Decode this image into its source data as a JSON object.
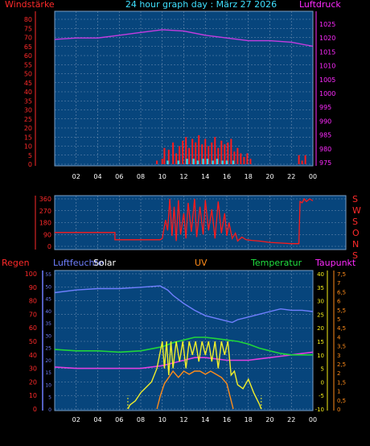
{
  "header": {
    "title": "24 hour graph day : März 27 2026",
    "left_label": "Windstärke",
    "right_label": "Luftdruck"
  },
  "panel3_labels": {
    "regen": "Regen",
    "luftfeuchte": "Luftfeuchte",
    "solar": "Solar",
    "uv": "UV",
    "temperatur": "Temperatur",
    "taupunkt": "Taupunkt"
  },
  "colors": {
    "background": "#000000",
    "plot": "#07457c",
    "grid": "#6f8fb3",
    "wind": "#ff1a1a",
    "gust": "#35d6e6",
    "pressure": "#c43ce0",
    "direction": "#ff1a1a",
    "humidity": "#6f7fff",
    "solar": "#f2ef2a",
    "uv": "#ff8c1a",
    "temperature": "#20d63a",
    "dewpoint": "#e040e0",
    "rain_axis": "#ff2a2a",
    "solar_axis": "#ffffff",
    "temp_axis": "#f7f01a",
    "uv_axis": "#ff8c1a"
  },
  "chart_data": [
    {
      "type": "line",
      "name": "wind_pressure",
      "x_ticks": [
        "02",
        "04",
        "06",
        "08",
        "10",
        "12",
        "14",
        "16",
        "18",
        "20",
        "22",
        "00"
      ],
      "y_left_ticks": [
        "0",
        "5",
        "10",
        "15",
        "20",
        "25",
        "30",
        "35",
        "40",
        "45",
        "50",
        "55",
        "60",
        "65",
        "70",
        "75",
        "80"
      ],
      "y_right_ticks": [
        "975",
        "980",
        "985",
        "990",
        "995",
        "1000",
        "1005",
        "1010",
        "1015",
        "1020",
        "1025"
      ],
      "ylim_left": [
        0,
        80
      ],
      "ylim_right": [
        975,
        1030
      ],
      "pressure": [
        [
          0,
          1019.5
        ],
        [
          2,
          1020
        ],
        [
          4,
          1020
        ],
        [
          6,
          1021
        ],
        [
          8,
          1022
        ],
        [
          10,
          1023
        ],
        [
          12,
          1022.5
        ],
        [
          14,
          1021
        ],
        [
          16,
          1020
        ],
        [
          18,
          1019
        ],
        [
          20,
          1019
        ],
        [
          22,
          1018.5
        ],
        [
          24,
          1017
        ]
      ],
      "wind_bars": [
        {
          "x": 9.5,
          "v": 2
        },
        {
          "x": 10.0,
          "v": 3
        },
        {
          "x": 10.2,
          "v": 9
        },
        {
          "x": 10.6,
          "v": 8
        },
        {
          "x": 11.0,
          "v": 12
        },
        {
          "x": 11.3,
          "v": 6
        },
        {
          "x": 11.6,
          "v": 10
        },
        {
          "x": 11.9,
          "v": 13
        },
        {
          "x": 12.2,
          "v": 15
        },
        {
          "x": 12.5,
          "v": 9
        },
        {
          "x": 12.8,
          "v": 14
        },
        {
          "x": 13.1,
          "v": 12
        },
        {
          "x": 13.4,
          "v": 16
        },
        {
          "x": 13.7,
          "v": 11
        },
        {
          "x": 14.0,
          "v": 14
        },
        {
          "x": 14.3,
          "v": 10
        },
        {
          "x": 14.6,
          "v": 12
        },
        {
          "x": 14.9,
          "v": 15
        },
        {
          "x": 15.2,
          "v": 9
        },
        {
          "x": 15.5,
          "v": 13
        },
        {
          "x": 15.8,
          "v": 11
        },
        {
          "x": 16.1,
          "v": 12
        },
        {
          "x": 16.4,
          "v": 14
        },
        {
          "x": 16.7,
          "v": 7
        },
        {
          "x": 17.0,
          "v": 9
        },
        {
          "x": 17.3,
          "v": 6
        },
        {
          "x": 17.6,
          "v": 4
        },
        {
          "x": 17.9,
          "v": 6
        },
        {
          "x": 18.2,
          "v": 3
        },
        {
          "x": 22.7,
          "v": 5
        },
        {
          "x": 23.0,
          "v": 2
        },
        {
          "x": 23.3,
          "v": 5
        }
      ],
      "gust_bars": [
        {
          "x": 10.5,
          "v": 2
        },
        {
          "x": 11.5,
          "v": 2
        },
        {
          "x": 12.3,
          "v": 3
        },
        {
          "x": 12.9,
          "v": 3
        },
        {
          "x": 13.3,
          "v": 2
        },
        {
          "x": 13.8,
          "v": 3
        },
        {
          "x": 14.2,
          "v": 3
        },
        {
          "x": 14.7,
          "v": 2
        },
        {
          "x": 15.1,
          "v": 3
        },
        {
          "x": 15.6,
          "v": 2
        },
        {
          "x": 16.0,
          "v": 2
        },
        {
          "x": 16.6,
          "v": 2
        }
      ]
    },
    {
      "type": "line",
      "name": "wind_direction",
      "y_left_ticks": [
        "0",
        "90",
        "180",
        "270",
        "360"
      ],
      "y_right_ticks": [
        "S",
        "W",
        "S",
        "O",
        "N",
        "S"
      ],
      "ylim": [
        0,
        360
      ],
      "direction": [
        [
          0,
          105
        ],
        [
          5.6,
          105
        ],
        [
          5.6,
          50
        ],
        [
          9.8,
          50
        ],
        [
          10.0,
          60
        ],
        [
          10.3,
          200
        ],
        [
          10.5,
          120
        ],
        [
          10.7,
          360
        ],
        [
          10.9,
          80
        ],
        [
          11.1,
          300
        ],
        [
          11.3,
          40
        ],
        [
          11.5,
          350
        ],
        [
          11.7,
          90
        ],
        [
          12.0,
          250
        ],
        [
          12.2,
          60
        ],
        [
          12.4,
          330
        ],
        [
          12.7,
          110
        ],
        [
          13.0,
          360
        ],
        [
          13.2,
          70
        ],
        [
          13.5,
          300
        ],
        [
          13.8,
          90
        ],
        [
          14.0,
          350
        ],
        [
          14.3,
          120
        ],
        [
          14.6,
          280
        ],
        [
          14.9,
          60
        ],
        [
          15.2,
          340
        ],
        [
          15.5,
          100
        ],
        [
          15.8,
          250
        ],
        [
          16.0,
          80
        ],
        [
          16.2,
          180
        ],
        [
          16.5,
          60
        ],
        [
          16.8,
          100
        ],
        [
          17.0,
          40
        ],
        [
          17.4,
          70
        ],
        [
          17.8,
          50
        ],
        [
          18.3,
          45
        ],
        [
          19.0,
          40
        ],
        [
          20.0,
          30
        ],
        [
          21.0,
          25
        ],
        [
          22.0,
          20
        ],
        [
          22.7,
          20
        ],
        [
          22.8,
          340
        ],
        [
          23.0,
          330
        ],
        [
          23.2,
          360
        ],
        [
          23.4,
          340
        ],
        [
          23.7,
          360
        ],
        [
          24,
          345
        ]
      ]
    },
    {
      "type": "line",
      "name": "humidity_solar_temp",
      "x_ticks": [
        "02",
        "04",
        "06",
        "08",
        "10",
        "12",
        "14",
        "16",
        "18",
        "20",
        "22",
        "00"
      ],
      "rain_ticks": [
        "0",
        "10",
        "20",
        "30",
        "40",
        "50",
        "60",
        "70",
        "80",
        "90",
        "100"
      ],
      "humidity_ticks": [
        "0",
        "5",
        "10",
        "15",
        "20",
        "25",
        "30",
        "35",
        "40",
        "45",
        "50",
        "55"
      ],
      "solar_ticks": [],
      "temp_ticks": [
        "-10",
        "-5",
        "0",
        "5",
        "10",
        "15",
        "20",
        "25",
        "30",
        "35",
        "40"
      ],
      "uv_ticks": [
        "0",
        "0,5",
        "1",
        "1,5",
        "2",
        "2,5",
        "3",
        "3,5",
        "4",
        "4,5",
        "5",
        "5,5",
        "6",
        "6,5",
        "7",
        "7,5"
      ],
      "humidity": [
        [
          0,
          86
        ],
        [
          2,
          88
        ],
        [
          4,
          89
        ],
        [
          6,
          89
        ],
        [
          8,
          90
        ],
        [
          9.8,
          91
        ],
        [
          10.5,
          88
        ],
        [
          11,
          84
        ],
        [
          12,
          78
        ],
        [
          13,
          73
        ],
        [
          14,
          69
        ],
        [
          15,
          67
        ],
        [
          16,
          65
        ],
        [
          16.5,
          64
        ],
        [
          17,
          66
        ],
        [
          18,
          68
        ],
        [
          19,
          70
        ],
        [
          20,
          72
        ],
        [
          21,
          74
        ],
        [
          22,
          73
        ],
        [
          23,
          73
        ],
        [
          24,
          72
        ]
      ],
      "temperature": [
        [
          0,
          20
        ],
        [
          2,
          19.5
        ],
        [
          4,
          19.5
        ],
        [
          6,
          19
        ],
        [
          8,
          19.5
        ],
        [
          10,
          21
        ],
        [
          11,
          22.5
        ],
        [
          12,
          23.5
        ],
        [
          13,
          24.5
        ],
        [
          14,
          24.5
        ],
        [
          15,
          24
        ],
        [
          16,
          23.5
        ],
        [
          17,
          23
        ],
        [
          18,
          22
        ],
        [
          19,
          20.5
        ],
        [
          20,
          19.5
        ],
        [
          21,
          18.5
        ],
        [
          22,
          18
        ],
        [
          23,
          18
        ],
        [
          24,
          18
        ]
      ],
      "dewpoint": [
        [
          0,
          15.5
        ],
        [
          2,
          15
        ],
        [
          4,
          15
        ],
        [
          6,
          15
        ],
        [
          8,
          15
        ],
        [
          10,
          16
        ],
        [
          11,
          17
        ],
        [
          12,
          18
        ],
        [
          13,
          19
        ],
        [
          14,
          19
        ],
        [
          15,
          18.5
        ],
        [
          16,
          18
        ],
        [
          17,
          18
        ],
        [
          18,
          18
        ],
        [
          19,
          18.5
        ],
        [
          20,
          19
        ],
        [
          21,
          19.5
        ],
        [
          22,
          20
        ],
        [
          23,
          20.5
        ],
        [
          24,
          21
        ]
      ],
      "solar": [
        [
          6.8,
          0
        ],
        [
          7.0,
          3
        ],
        [
          7.5,
          6
        ],
        [
          8.0,
          12
        ],
        [
          8.5,
          16
        ],
        [
          9.0,
          20
        ],
        [
          9.5,
          30
        ],
        [
          10.0,
          50
        ],
        [
          10.2,
          30
        ],
        [
          10.4,
          50
        ],
        [
          10.6,
          25
        ],
        [
          10.8,
          50
        ],
        [
          11.0,
          30
        ],
        [
          11.3,
          50
        ],
        [
          11.6,
          35
        ],
        [
          11.9,
          50
        ],
        [
          12.2,
          30
        ],
        [
          12.5,
          50
        ],
        [
          12.8,
          40
        ],
        [
          13.1,
          50
        ],
        [
          13.4,
          35
        ],
        [
          13.7,
          50
        ],
        [
          14.0,
          40
        ],
        [
          14.3,
          50
        ],
        [
          14.6,
          35
        ],
        [
          14.9,
          50
        ],
        [
          15.2,
          30
        ],
        [
          15.5,
          50
        ],
        [
          15.8,
          40
        ],
        [
          16.1,
          50
        ],
        [
          16.4,
          25
        ],
        [
          16.7,
          28
        ],
        [
          17.0,
          18
        ],
        [
          17.5,
          15
        ],
        [
          18.0,
          22
        ],
        [
          18.5,
          12
        ],
        [
          19.0,
          4
        ],
        [
          19.2,
          0
        ]
      ],
      "uv": [
        [
          9.5,
          0
        ],
        [
          9.8,
          2
        ],
        [
          10.2,
          4
        ],
        [
          10.6,
          5
        ],
        [
          11.0,
          6
        ],
        [
          11.5,
          5
        ],
        [
          12.0,
          6
        ],
        [
          12.5,
          5.5
        ],
        [
          13.0,
          6
        ],
        [
          13.5,
          6
        ],
        [
          14.0,
          5.5
        ],
        [
          14.5,
          6
        ],
        [
          15.0,
          5.5
        ],
        [
          15.5,
          5
        ],
        [
          16.0,
          4
        ],
        [
          16.3,
          2
        ],
        [
          16.6,
          0
        ]
      ]
    }
  ]
}
